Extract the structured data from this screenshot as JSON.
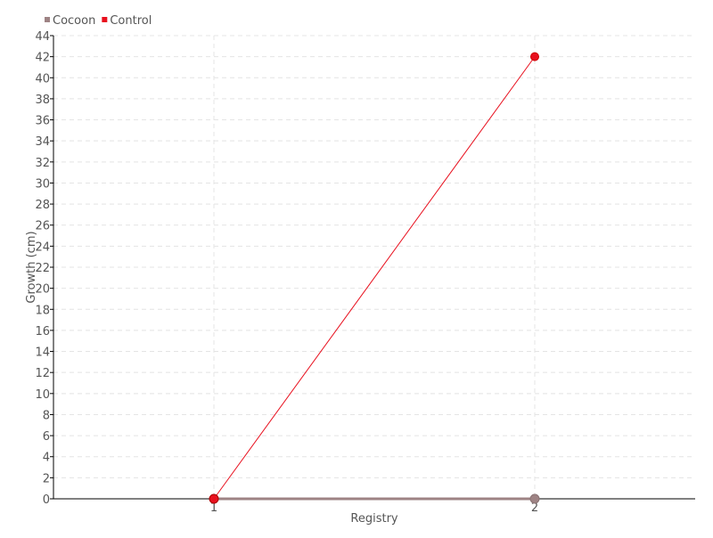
{
  "chart_data": {
    "type": "line",
    "title": "",
    "xlabel": "Registry",
    "ylabel": "Growth (cm)",
    "x": [
      1,
      2
    ],
    "xlim": [
      0.5,
      2.5
    ],
    "ylim": [
      0,
      44
    ],
    "ytick_step": 2,
    "grid": true,
    "legend_position": "top-left",
    "series": [
      {
        "name": "Cocoon",
        "values": [
          0,
          0
        ],
        "color": "#9e8384"
      },
      {
        "name": "Control",
        "values": [
          0,
          42
        ],
        "color": "#e8101e"
      }
    ]
  }
}
